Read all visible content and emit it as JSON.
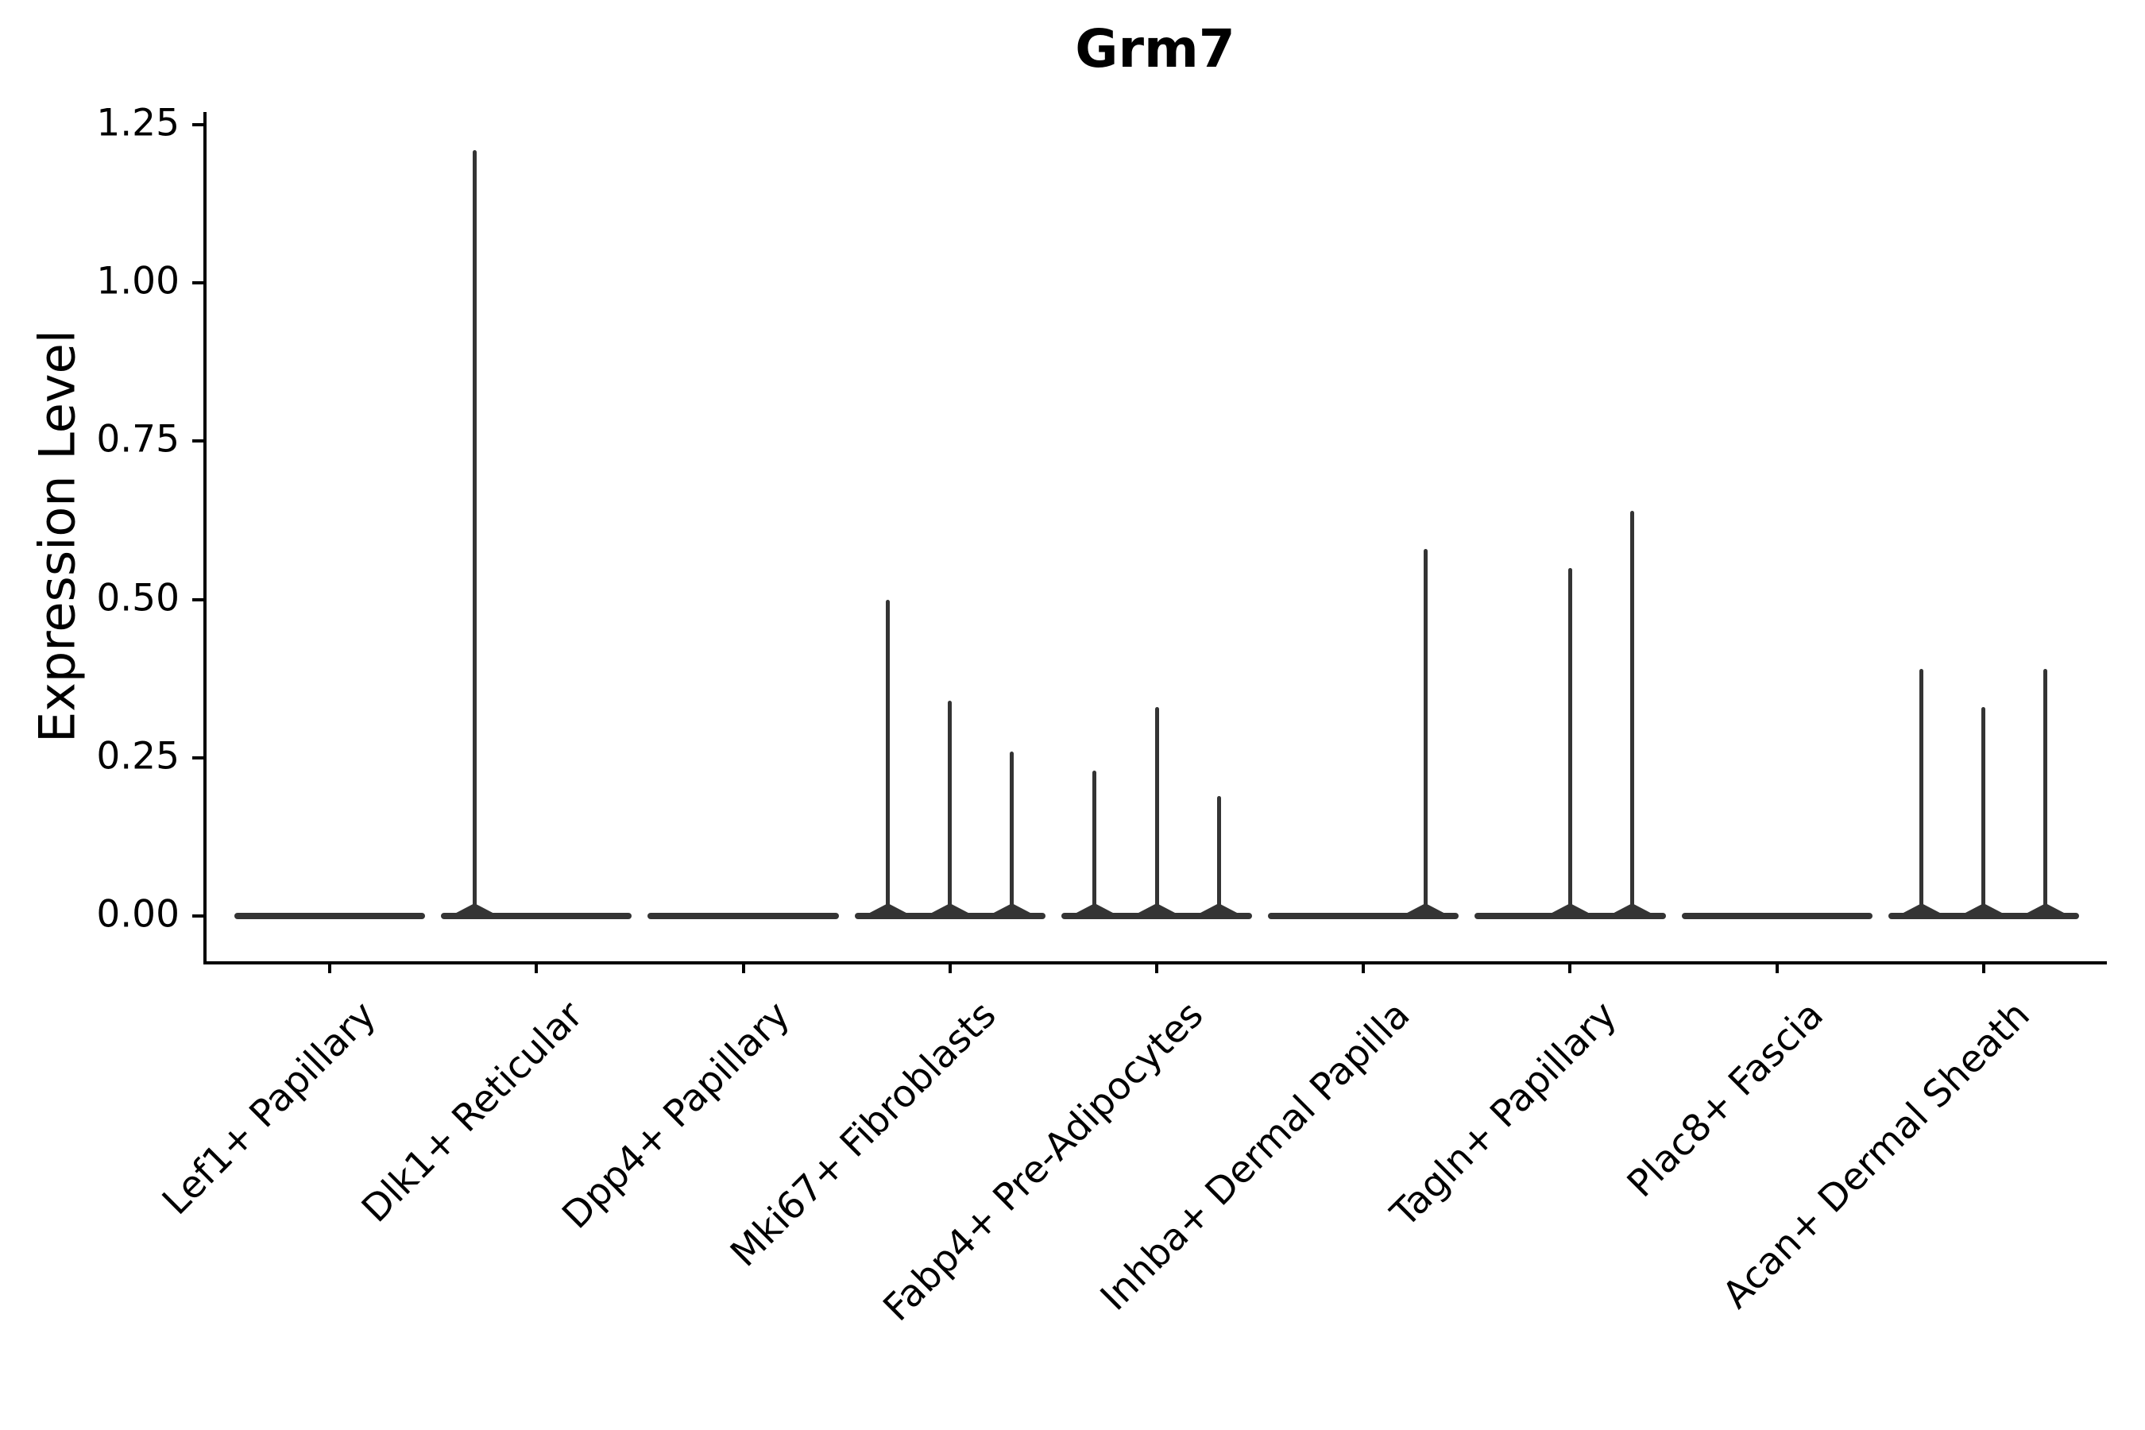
{
  "figure": {
    "title": "Grm7",
    "background": "#ffffff",
    "text_color": "#000000"
  },
  "chart_data": {
    "type": "violin",
    "title": "Grm7",
    "xlabel": "",
    "ylabel": "Expression Level",
    "grid": false,
    "legend": "none",
    "ylim": [
      -0.07,
      1.27
    ],
    "y_ticks": [
      {
        "label": "0.00",
        "value": 0.0
      },
      {
        "label": "0.25",
        "value": 0.25
      },
      {
        "label": "0.50",
        "value": 0.5
      },
      {
        "label": "0.75",
        "value": 0.75
      },
      {
        "label": "1.00",
        "value": 1.0
      },
      {
        "label": "1.25",
        "value": 1.25
      }
    ],
    "x_tick_rotation": 45,
    "categories": [
      "Lef1+ Papillary",
      "Dlk1+ Reticular",
      "Dpp4+ Papillary",
      "Mki67+ Fibroblasts",
      "Fabp4+ Pre-Adipocytes",
      "Inhba+ Dermal Papilla",
      "Tagln+ Papillary",
      "Plac8+ Fascia",
      "Acan+ Dermal Sheath"
    ],
    "violins": [
      {
        "category": "Lef1+ Papillary",
        "baseline": 0,
        "spikes": []
      },
      {
        "category": "Dlk1+ Reticular",
        "baseline": 0,
        "spikes": [
          {
            "pos": "left",
            "max": 1.21
          }
        ]
      },
      {
        "category": "Dpp4+ Papillary",
        "baseline": 0,
        "spikes": []
      },
      {
        "category": "Mki67+ Fibroblasts",
        "baseline": 0,
        "spikes": [
          {
            "pos": "left",
            "max": 0.5
          },
          {
            "pos": "center",
            "max": 0.34
          },
          {
            "pos": "right",
            "max": 0.26
          }
        ]
      },
      {
        "category": "Fabp4+ Pre-Adipocytes",
        "baseline": 0,
        "spikes": [
          {
            "pos": "left",
            "max": 0.23
          },
          {
            "pos": "center",
            "max": 0.33
          },
          {
            "pos": "right",
            "max": 0.19
          }
        ]
      },
      {
        "category": "Inhba+ Dermal Papilla",
        "baseline": 0,
        "spikes": [
          {
            "pos": "right",
            "max": 0.58
          }
        ]
      },
      {
        "category": "Tagln+ Papillary",
        "baseline": 0,
        "spikes": [
          {
            "pos": "center",
            "max": 0.55
          },
          {
            "pos": "right",
            "max": 0.64
          }
        ]
      },
      {
        "category": "Plac8+ Fascia",
        "baseline": 0,
        "spikes": []
      },
      {
        "category": "Acan+ Dermal Sheath",
        "baseline": 0,
        "spikes": [
          {
            "pos": "left",
            "max": 0.39
          },
          {
            "pos": "center",
            "max": 0.33
          },
          {
            "pos": "right",
            "max": 0.39
          }
        ]
      }
    ],
    "colors": {
      "violin": "#343434",
      "axis": "#000000"
    }
  }
}
